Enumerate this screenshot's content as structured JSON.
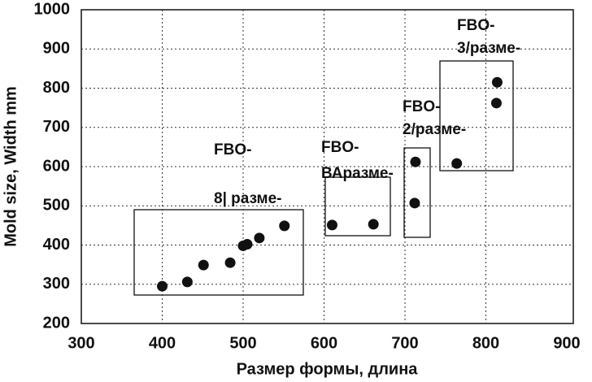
{
  "chart_data": {
    "type": "scatter",
    "x_label": "Размер формы, длина",
    "y_label": "Mold size, Width mm",
    "xlim": [
      300,
      900
    ],
    "xticks": [
      300,
      400,
      500,
      600,
      700,
      800,
      900
    ],
    "ylim": [
      200,
      1000
    ],
    "yticks": [
      200,
      300,
      400,
      500,
      600,
      700,
      800,
      900,
      1000
    ],
    "grid": true,
    "series": [
      {
        "color": "#111111",
        "x": [
          400,
          431,
          451,
          484,
          500,
          505,
          520,
          551,
          610,
          661,
          712,
          713,
          764,
          813,
          814
        ],
        "values": [
          295,
          306,
          349,
          355,
          398,
          402,
          418,
          449,
          451,
          453,
          507,
          612,
          608,
          762,
          815
        ]
      }
    ],
    "annotations": [
      [
        "FBO-",
        "8| разме-"
      ],
      [
        "FBO-",
        "ВАразме-"
      ],
      [
        "FBO-",
        "2/разме-"
      ],
      [
        "FBO-",
        "3/разме-"
      ]
    ]
  }
}
